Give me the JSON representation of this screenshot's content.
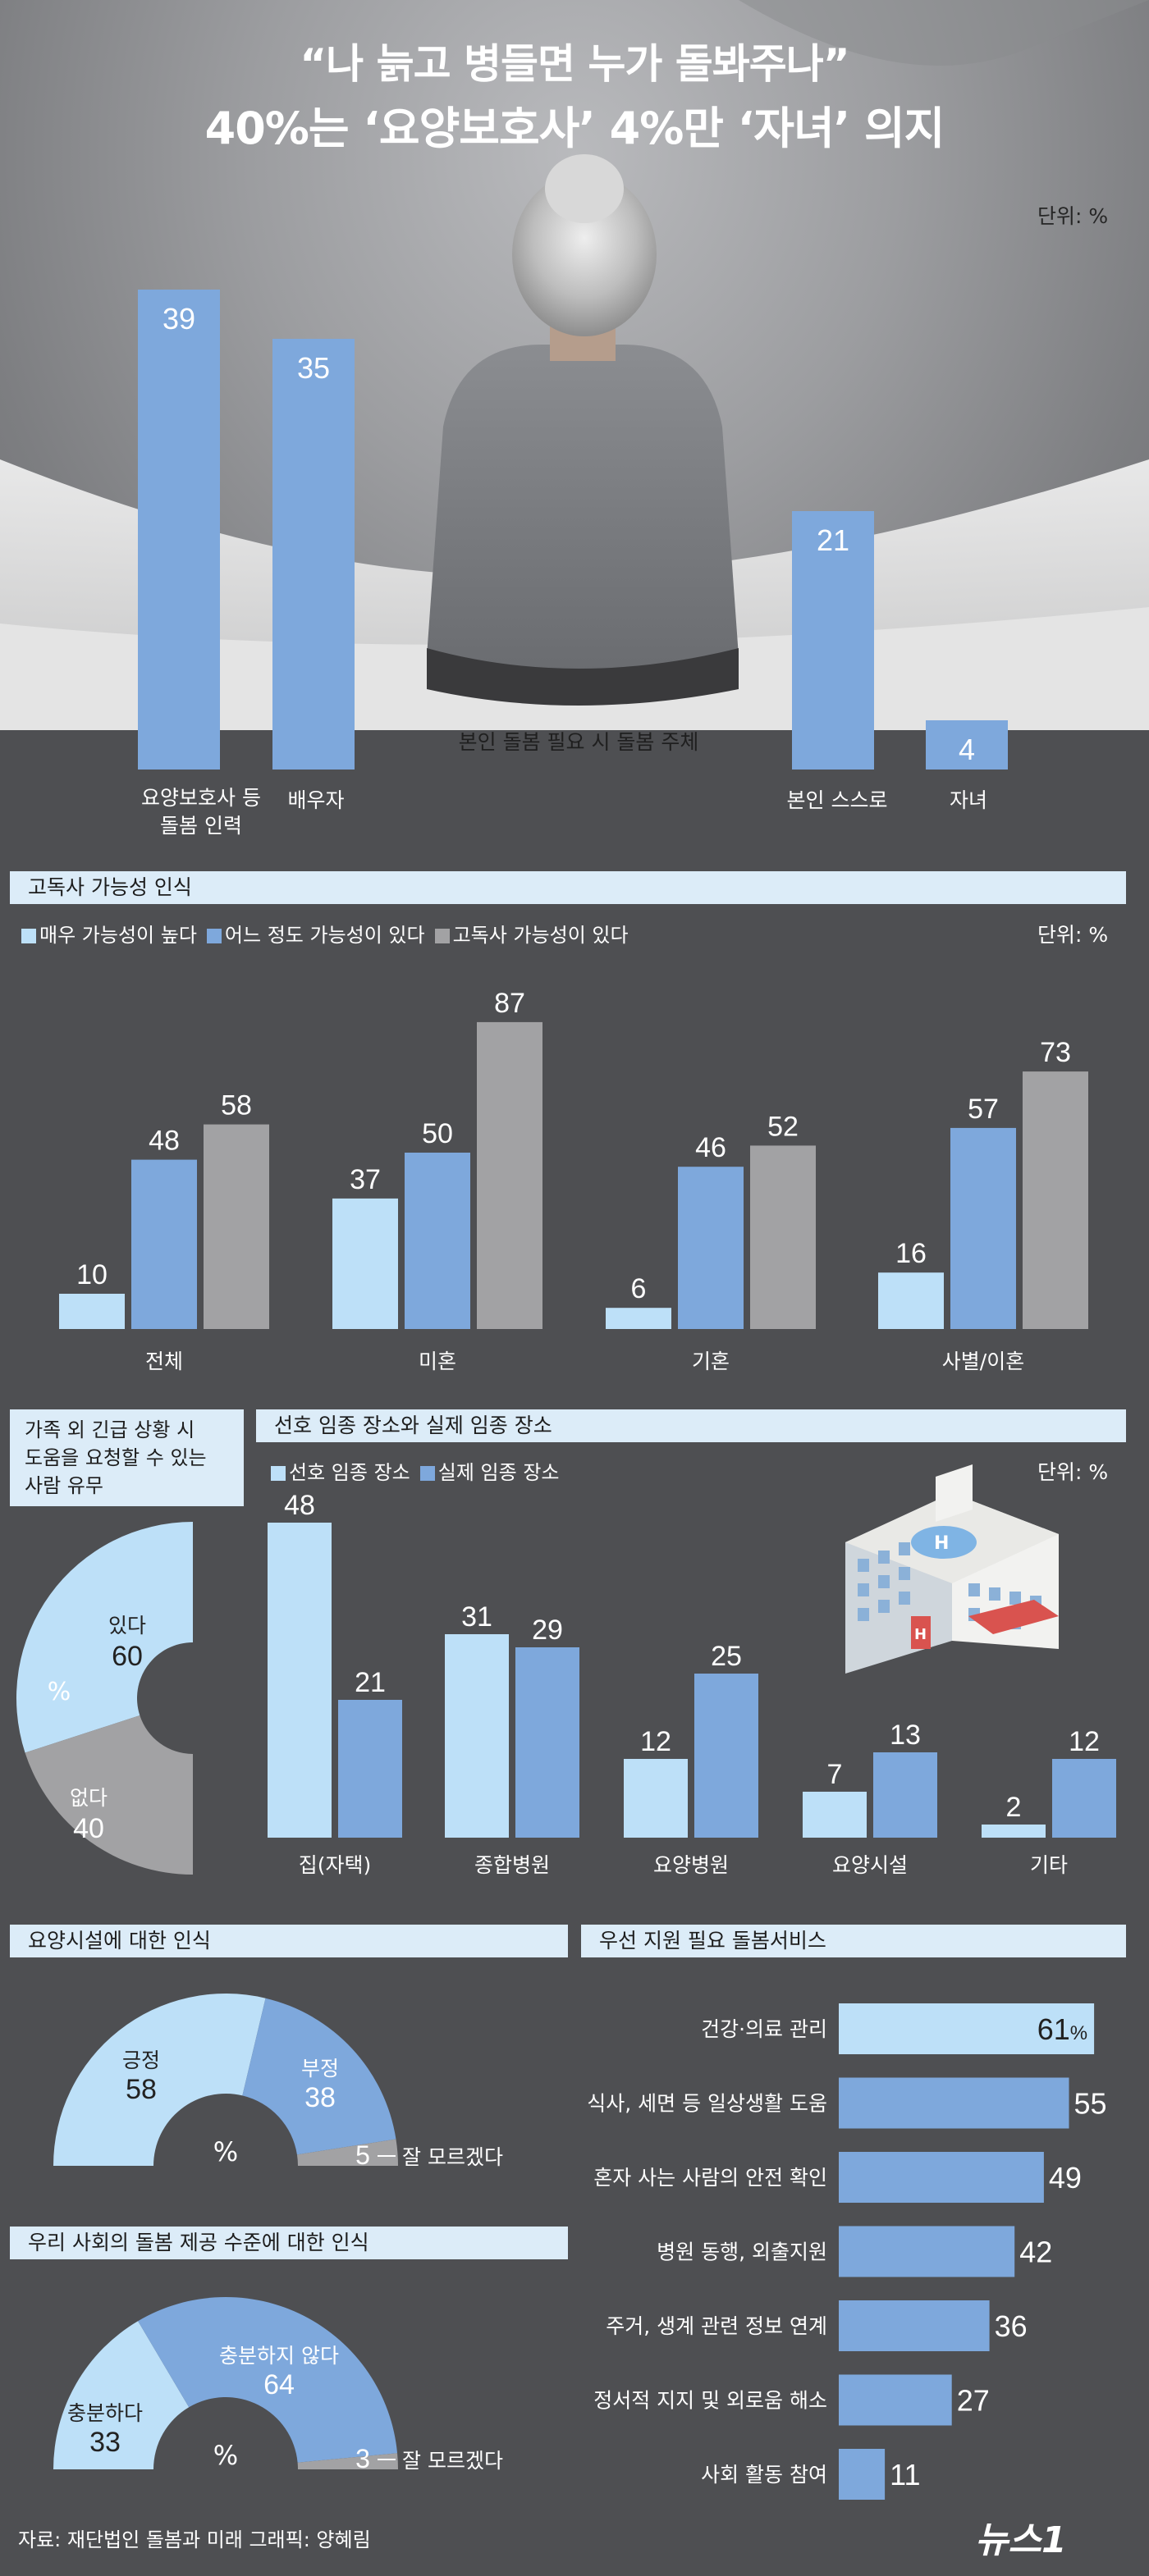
{
  "title_line1": "“나 늙고 병들면 누가 돌봐주나”",
  "title_line2": "40%는 ‘요양보호사’ 4%만 ‘자녀’ 의지",
  "unit_label": "단위: %",
  "chart_data": [
    {
      "type": "bar",
      "title": "",
      "annotation": "본인 돌봄 필요 시 돌봄 주체",
      "categories": [
        "요양보호사 등 돌봄 인력",
        "배우자",
        "본인 스스로",
        "자녀"
      ],
      "category_lines": [
        [
          "요양보호사 등",
          "돌봄 인력"
        ],
        [
          "배우자"
        ],
        [
          "본인 스스로"
        ],
        [
          "자녀"
        ]
      ],
      "values": [
        39,
        35,
        21,
        4
      ],
      "unit": "단위: %"
    },
    {
      "type": "bar",
      "title": "고독사 가능성 인식",
      "categories": [
        "전체",
        "미혼",
        "기혼",
        "사별/이혼"
      ],
      "series": [
        {
          "name": "매우 가능성이 높다",
          "values": [
            10,
            37,
            6,
            16
          ]
        },
        {
          "name": "어느 정도 가능성이 있다",
          "values": [
            48,
            50,
            46,
            57
          ]
        },
        {
          "name": "고독사 가능성이 있다",
          "values": [
            58,
            87,
            52,
            73
          ]
        }
      ],
      "unit": "단위: %"
    },
    {
      "type": "pie",
      "title": "가족 외 긴급 상황 시 도움을 요청할 수 있는 사람 유무",
      "title_lines": [
        "가족 외 긴급 상황 시",
        "도움을 요청할 수 있는",
        "사람 유무"
      ],
      "center_label": "%",
      "slices": [
        {
          "label": "있다",
          "value": 60
        },
        {
          "label": "없다",
          "value": 40
        }
      ]
    },
    {
      "type": "bar",
      "title": "선호 임종 장소와 실제 임종 장소",
      "categories": [
        "집(자택)",
        "종합병원",
        "요양병원",
        "요양시설",
        "기타"
      ],
      "series": [
        {
          "name": "선호 임종 장소",
          "values": [
            48,
            31,
            12,
            7,
            2
          ]
        },
        {
          "name": "실제 임종 장소",
          "values": [
            21,
            29,
            25,
            13,
            12
          ]
        }
      ],
      "unit": "단위: %"
    },
    {
      "type": "pie",
      "title": "요양시설에 대한 인식",
      "center_label": "%",
      "slices": [
        {
          "label": "긍정",
          "value": 58
        },
        {
          "label": "부정",
          "value": 38
        },
        {
          "label": "잘 모르겠다",
          "value": 5
        }
      ]
    },
    {
      "type": "pie",
      "title": "우리 사회의 돌봄 제공 수준에 대한 인식",
      "center_label": "%",
      "slices": [
        {
          "label": "충분하다",
          "value": 33
        },
        {
          "label": "충분하지 않다",
          "value": 64
        },
        {
          "label": "잘 모르겠다",
          "value": 3
        }
      ]
    },
    {
      "type": "bar",
      "orientation": "horizontal",
      "title": "우선 지원 필요 돌봄서비스",
      "categories": [
        "건강·의료 관리",
        "식사, 세면 등 일상생활 도움",
        "혼자 사는 사람의 안전 확인",
        "병원 동행, 외출지원",
        "주거, 생계 관련 정보 연계",
        "정서적 지지 및 외로움 해소",
        "사회 활동 참여"
      ],
      "values": [
        61,
        55,
        49,
        42,
        36,
        27,
        11
      ],
      "first_value_suffix": "%"
    }
  ],
  "colors": {
    "light_blue": "#bde0f8",
    "mid_blue": "#7ea8dc",
    "gray": "#a2a2a4",
    "background": "#4e4f52",
    "section_bar": "#dcecf8"
  },
  "footer": {
    "source": "자료: 재단법인 돌봄과 미래   그래픽: 양혜림",
    "logo": "뉴스1"
  }
}
